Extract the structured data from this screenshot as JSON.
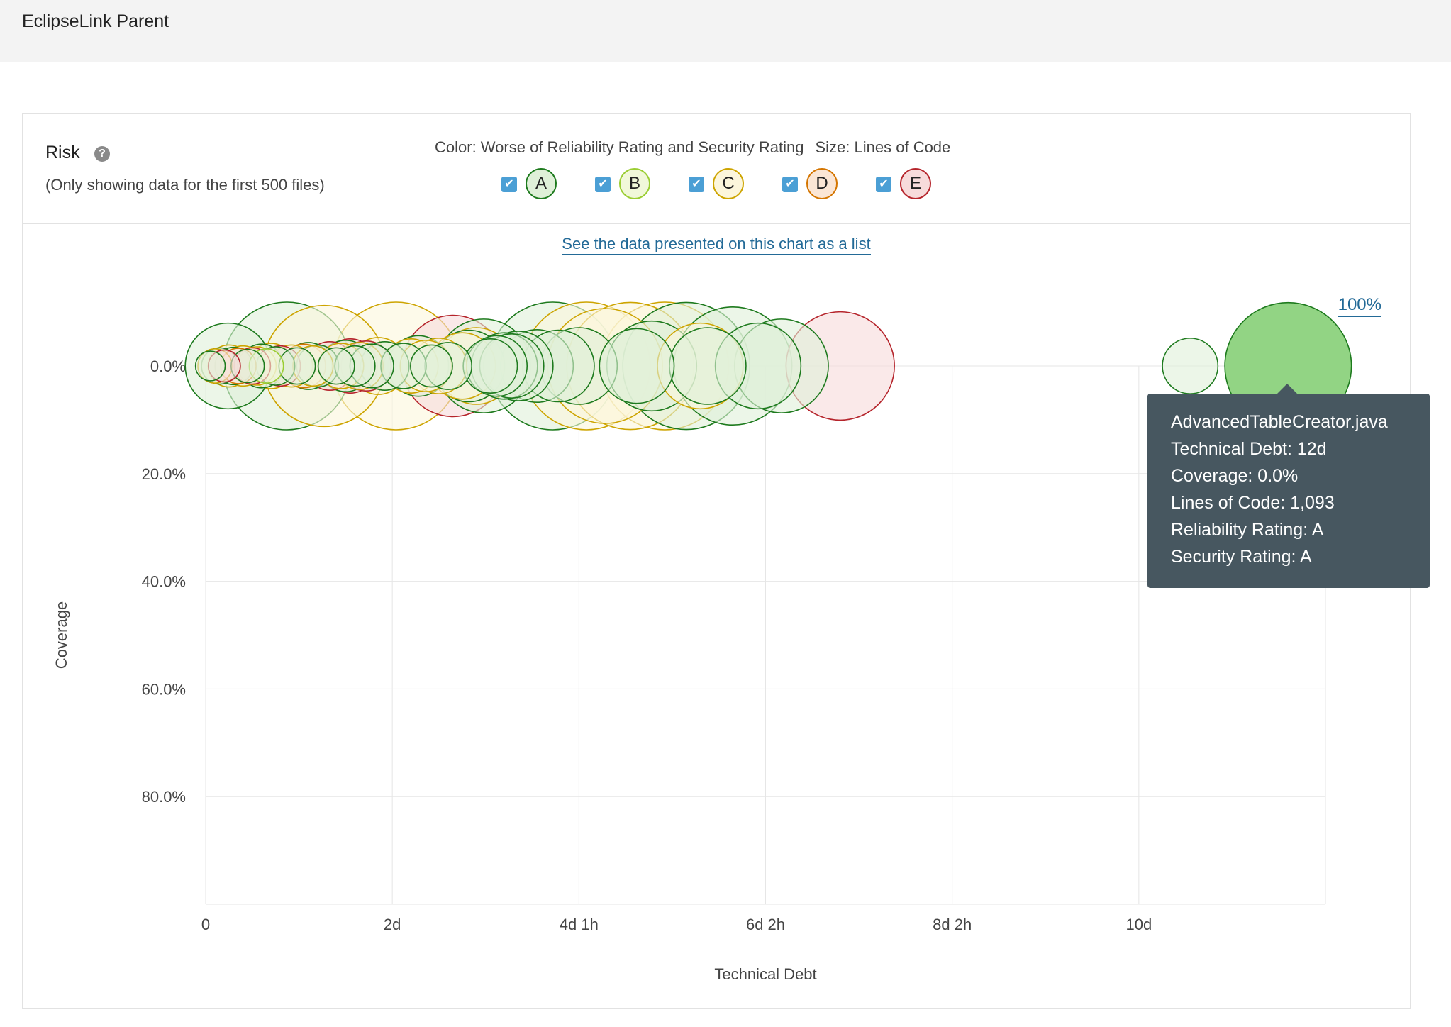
{
  "header": {
    "project_name": "EclipseLink Parent"
  },
  "panel": {
    "title": "Risk",
    "help_icon": "question-circle-icon",
    "note": "(Only showing data for the first 500 files)",
    "color_caption": "Color: Worse of Reliability Rating and Security Rating",
    "size_caption": "Size: Lines of Code",
    "legend": [
      {
        "letter": "A",
        "checked": true,
        "fill": "#dff0d8",
        "stroke": "#1d7a1d"
      },
      {
        "letter": "B",
        "checked": true,
        "fill": "#f1f8d9",
        "stroke": "#9acd32"
      },
      {
        "letter": "C",
        "checked": true,
        "fill": "#fcf6dc",
        "stroke": "#cda400"
      },
      {
        "letter": "D",
        "checked": true,
        "fill": "#fbe6d5",
        "stroke": "#d47500"
      },
      {
        "letter": "E",
        "checked": true,
        "fill": "#f7dbdb",
        "stroke": "#b5242b"
      }
    ],
    "list_link": "See the data presented on this chart as a list",
    "zoom_link": "100%"
  },
  "chart_data": {
    "type": "scatter",
    "xlabel": "Technical Debt",
    "ylabel": "Coverage",
    "x_ticks": [
      "0",
      "2d",
      "4d 1h",
      "6d 2h",
      "8d 2h",
      "10d"
    ],
    "y_ticks": [
      "0.0%",
      "20.0%",
      "40.0%",
      "60.0%",
      "80.0%"
    ],
    "x_unit": "days",
    "xlim": [
      0,
      12
    ],
    "ylim": [
      0,
      100
    ],
    "y_inverted": true,
    "points": [
      {
        "x": 0.05,
        "r": "A",
        "loc": 60
      },
      {
        "x": 0.1,
        "r": "C",
        "loc": 80
      },
      {
        "x": 0.15,
        "r": "A",
        "loc": 90
      },
      {
        "x": 0.2,
        "r": "E",
        "loc": 70
      },
      {
        "x": 0.25,
        "r": "C",
        "loc": 120
      },
      {
        "x": 0.3,
        "r": "A",
        "loc": 95
      },
      {
        "x": 0.24,
        "r": "A",
        "loc": 500
      },
      {
        "x": 0.35,
        "r": "D",
        "loc": 85
      },
      {
        "x": 0.4,
        "r": "C",
        "loc": 110
      },
      {
        "x": 0.45,
        "r": "A",
        "loc": 75
      },
      {
        "x": 0.5,
        "r": "E",
        "loc": 90
      },
      {
        "x": 0.55,
        "r": "C",
        "loc": 100
      },
      {
        "x": 0.6,
        "r": "A",
        "loc": 130
      },
      {
        "x": 0.65,
        "r": "B",
        "loc": 80
      },
      {
        "x": 0.7,
        "r": "C",
        "loc": 140
      },
      {
        "x": 0.75,
        "r": "A",
        "loc": 100
      },
      {
        "x": 0.8,
        "r": "E",
        "loc": 110
      },
      {
        "x": 0.87,
        "r": "A",
        "loc": 1650
      },
      {
        "x": 0.92,
        "r": "C",
        "loc": 120
      },
      {
        "x": 0.98,
        "r": "A",
        "loc": 90
      },
      {
        "x": 1.05,
        "r": "D",
        "loc": 130
      },
      {
        "x": 1.1,
        "r": "A",
        "loc": 150
      },
      {
        "x": 1.15,
        "r": "C",
        "loc": 110
      },
      {
        "x": 1.2,
        "r": "A",
        "loc": 120
      },
      {
        "x": 1.27,
        "r": "C",
        "loc": 1000
      },
      {
        "x": 1.33,
        "r": "E",
        "loc": 160
      },
      {
        "x": 1.4,
        "r": "A",
        "loc": 90
      },
      {
        "x": 1.45,
        "r": "C",
        "loc": 140
      },
      {
        "x": 1.5,
        "r": "A",
        "loc": 180
      },
      {
        "x": 1.55,
        "r": "E",
        "loc": 200
      },
      {
        "x": 1.6,
        "r": "A",
        "loc": 110
      },
      {
        "x": 1.65,
        "r": "C",
        "loc": 150
      },
      {
        "x": 1.72,
        "r": "E",
        "loc": 170
      },
      {
        "x": 1.78,
        "r": "A",
        "loc": 130
      },
      {
        "x": 1.85,
        "r": "C",
        "loc": 220
      },
      {
        "x": 1.92,
        "r": "A",
        "loc": 160
      },
      {
        "x": 2.04,
        "r": "C",
        "loc": 3800
      },
      {
        "x": 2.12,
        "r": "A",
        "loc": 140
      },
      {
        "x": 2.2,
        "r": "C",
        "loc": 200
      },
      {
        "x": 2.28,
        "r": "A",
        "loc": 250
      },
      {
        "x": 2.36,
        "r": "C",
        "loc": 180
      },
      {
        "x": 2.42,
        "r": "A",
        "loc": 120
      },
      {
        "x": 2.5,
        "r": "C",
        "loc": 210
      },
      {
        "x": 2.6,
        "r": "A",
        "loc": 150
      },
      {
        "x": 2.65,
        "r": "E",
        "loc": 700
      },
      {
        "x": 2.75,
        "r": "C",
        "loc": 300
      },
      {
        "x": 2.82,
        "r": "A",
        "loc": 350
      },
      {
        "x": 2.9,
        "r": "C",
        "loc": 400
      },
      {
        "x": 2.98,
        "r": "A",
        "loc": 600
      },
      {
        "x": 3.05,
        "r": "A",
        "loc": 200
      },
      {
        "x": 3.12,
        "r": "A",
        "loc": 250
      },
      {
        "x": 3.2,
        "r": "A",
        "loc": 300
      },
      {
        "x": 3.28,
        "r": "A",
        "loc": 280
      },
      {
        "x": 3.35,
        "r": "A",
        "loc": 330
      },
      {
        "x": 3.55,
        "r": "A",
        "loc": 360
      },
      {
        "x": 3.72,
        "r": "A",
        "loc": 1700
      },
      {
        "x": 3.78,
        "r": "A",
        "loc": 350
      },
      {
        "x": 4.0,
        "r": "A",
        "loc": 400
      },
      {
        "x": 4.08,
        "r": "C",
        "loc": 1400
      },
      {
        "x": 4.28,
        "r": "C",
        "loc": 900
      },
      {
        "x": 4.55,
        "r": "C",
        "loc": 1100
      },
      {
        "x": 4.62,
        "r": "A",
        "loc": 380
      },
      {
        "x": 4.78,
        "r": "A",
        "loc": 550
      },
      {
        "x": 4.92,
        "r": "C",
        "loc": 1200
      },
      {
        "x": 5.15,
        "r": "A",
        "loc": 1100
      },
      {
        "x": 5.3,
        "r": "C",
        "loc": 500
      },
      {
        "x": 5.38,
        "r": "A",
        "loc": 400
      },
      {
        "x": 5.65,
        "r": "A",
        "loc": 950
      },
      {
        "x": 5.92,
        "r": "A",
        "loc": 500
      },
      {
        "x": 6.17,
        "r": "A",
        "loc": 600
      },
      {
        "x": 6.8,
        "r": "E",
        "loc": 800
      },
      {
        "x": 10.55,
        "r": "A",
        "loc": 210
      },
      {
        "x": 11.6,
        "r": "A",
        "loc": 1093,
        "highlight": true
      }
    ]
  },
  "tooltip": {
    "file": "AdvancedTableCreator.java",
    "debt": "Technical Debt: 12d",
    "coverage": "Coverage: 0.0%",
    "loc": "Lines of Code: 1,093",
    "reliability": "Reliability Rating: A",
    "security": "Security Rating: A"
  }
}
